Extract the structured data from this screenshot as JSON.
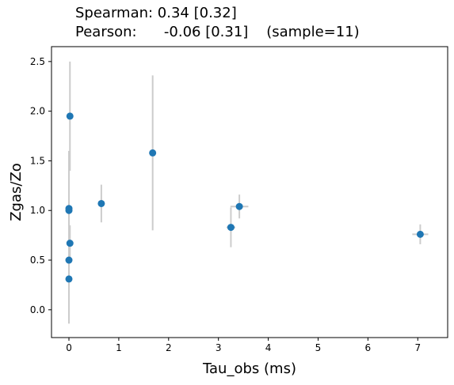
{
  "chart_data": {
    "type": "scatter",
    "title_lines": [
      "Spearman: 0.34 [0.32]",
      "Pearson:      -0.06 [0.31]    (sample=11)"
    ],
    "xlabel": "Tau_obs (ms)",
    "ylabel": "Zgas/Zo",
    "xlim": [
      -0.35,
      7.6
    ],
    "ylim": [
      -0.28,
      2.65
    ],
    "xticks": [
      0,
      1,
      2,
      3,
      4,
      5,
      6,
      7
    ],
    "yticks": [
      0.0,
      0.5,
      1.0,
      1.5,
      2.0,
      2.5
    ],
    "grid": false,
    "marker_color": "#1f77b4",
    "errorbar_color": "#cccccc",
    "points": [
      {
        "x": 0.02,
        "y": 1.95,
        "yerr": 0.55,
        "xerr": 0.0
      },
      {
        "x": 0.0,
        "y": 1.02,
        "yerr": 0.58,
        "xerr": 0.0
      },
      {
        "x": 0.0,
        "y": 1.0,
        "yerr": 0.2,
        "xerr": 0.0
      },
      {
        "x": 0.02,
        "y": 0.67,
        "yerr": 0.18,
        "xerr": 0.0
      },
      {
        "x": 0.0,
        "y": 0.5,
        "yerr": 0.1,
        "xerr": 0.0
      },
      {
        "x": 0.0,
        "y": 0.31,
        "yerr": 0.45,
        "xerr": 0.0
      },
      {
        "x": 0.65,
        "y": 1.07,
        "yerr": 0.19,
        "xerr": 0.0
      },
      {
        "x": 1.68,
        "y": 1.58,
        "yerr": 0.78,
        "xerr": 0.0
      },
      {
        "x": 3.25,
        "y": 0.83,
        "yerr": 0.2,
        "xerr": 0.09
      },
      {
        "x": 3.42,
        "y": 1.04,
        "yerr": 0.12,
        "xerr": 0.18
      },
      {
        "x": 7.05,
        "y": 0.76,
        "yerr": 0.1,
        "xerr": 0.16
      }
    ]
  }
}
